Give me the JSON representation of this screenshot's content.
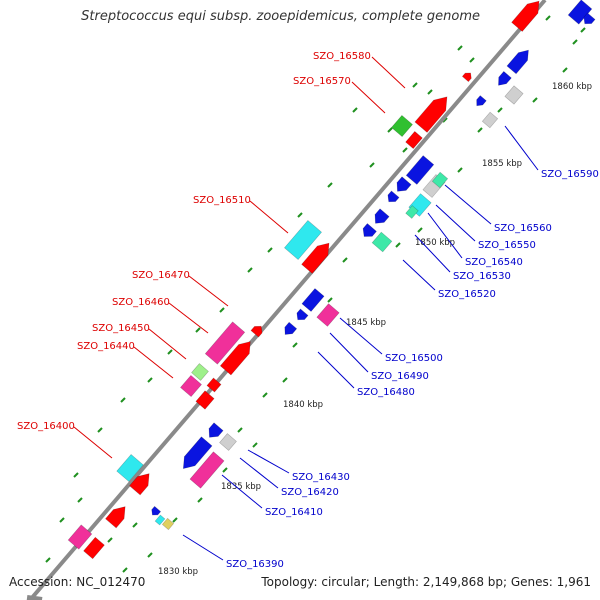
{
  "title": "Streptococcus equi subsp. zooepidemicus, complete genome",
  "footer": {
    "accession": "Accession: NC_012470",
    "summary": "Topology: circular; Length: 2,149,868 bp; Genes: 1,961"
  },
  "colors": {
    "backbone": "#8a8a8a",
    "forward_label": "#dd0000",
    "reverse_label": "#0000cc",
    "red": "#ff0000",
    "blue": "#0a14e0",
    "cyan": "#2fe8ee",
    "magenta": "#f0309a",
    "green": "#30c030",
    "lightgreen": "#9ef08a",
    "teal": "#3ee8a8",
    "gray": "#cfcfcf",
    "tick": "#209020"
  },
  "scale_ticks": [
    "1860 kbp",
    "1855 kbp",
    "1850 kbp",
    "1845 kbp",
    "1840 kbp",
    "1835 kbp",
    "1830 kbp"
  ],
  "labels_forward": [
    "SZO_16580",
    "SZO_16570",
    "SZO_16510",
    "SZO_16470",
    "SZO_16460",
    "SZO_16450",
    "SZO_16440",
    "SZO_16400"
  ],
  "labels_reverse": [
    "SZO_16590",
    "SZO_16560",
    "SZO_16550",
    "SZO_16540",
    "SZO_16530",
    "SZO_16520",
    "SZO_16500",
    "SZO_16490",
    "SZO_16480",
    "SZO_16430",
    "SZO_16420",
    "SZO_16410",
    "SZO_16390"
  ]
}
